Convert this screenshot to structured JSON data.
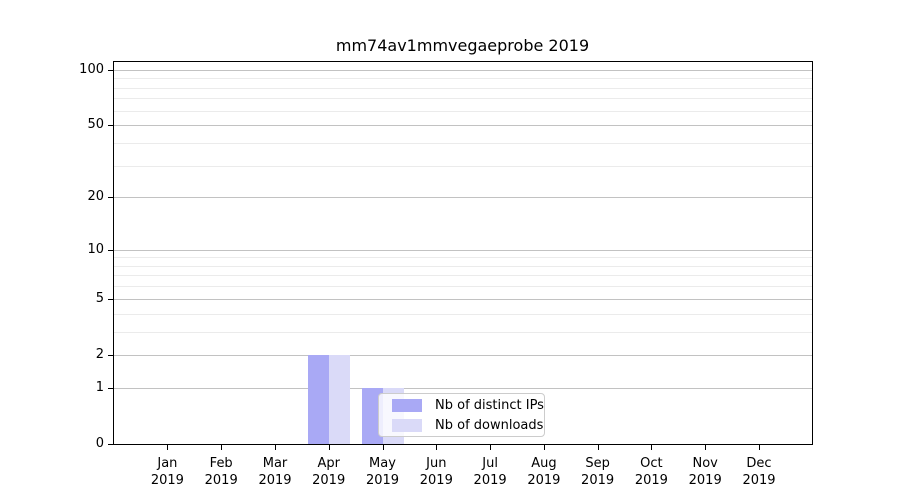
{
  "chart_data": {
    "type": "bar",
    "title": "mm74av1mmvegaeprobe 2019",
    "categories": [
      "Jan",
      "Feb",
      "Mar",
      "Apr",
      "May",
      "Jun",
      "Jul",
      "Aug",
      "Sep",
      "Oct",
      "Nov",
      "Dec"
    ],
    "x_tick_year": "2019",
    "series": [
      {
        "name": "Nb of distinct IPs",
        "color": "#a9a9f5",
        "values": [
          0,
          0,
          0,
          2,
          1,
          0,
          0,
          0,
          0,
          0,
          0,
          0
        ]
      },
      {
        "name": "Nb of downloads",
        "color": "#dadaf8",
        "values": [
          0,
          0,
          0,
          2,
          1,
          0,
          0,
          0,
          0,
          0,
          0,
          0
        ]
      }
    ],
    "y_scale": "log10(1+y)",
    "y_ticks": [
      0,
      1,
      2,
      5,
      10,
      20,
      50,
      100
    ],
    "y_minor_ticks": [
      3,
      4,
      6,
      7,
      8,
      9,
      30,
      40,
      60,
      70,
      80,
      90
    ],
    "ylim": [
      0,
      110
    ],
    "xlabel": "",
    "ylabel": "",
    "grid": "horizontal, major and minor",
    "legend_position": "lower center-left inside plot"
  },
  "legend": {
    "items": [
      {
        "label": "Nb of distinct IPs",
        "color": "#a9a9f5"
      },
      {
        "label": "Nb of downloads",
        "color": "#dadaf8"
      }
    ]
  },
  "colors": {
    "background": "#ffffff",
    "axis": "#000000",
    "major_grid": "#c2c2c2",
    "minor_grid": "#ebebeb",
    "bar_distinct_ips": "#a9a9f5",
    "bar_downloads": "#dadaf8",
    "legend_border": "#cccccc"
  }
}
